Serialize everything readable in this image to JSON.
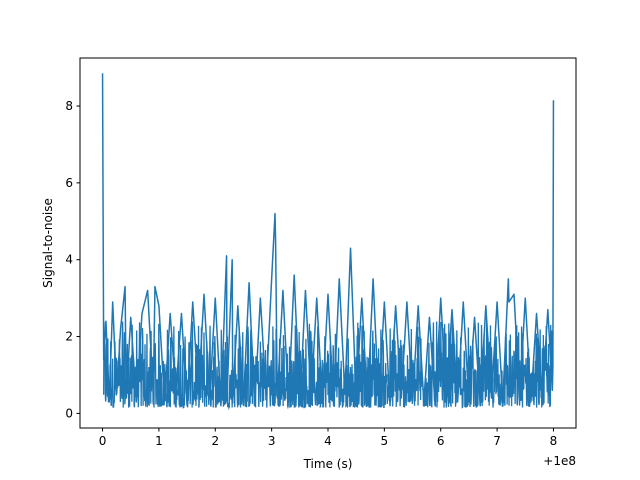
{
  "chart_data": {
    "type": "line",
    "xlabel": "Time (s)",
    "ylabel": "Signal-to-noise",
    "x_offset_label": "+1e8",
    "xlim": [
      -0.4,
      8.4
    ],
    "ylim": [
      -0.38,
      9.25
    ],
    "x_ticks": [
      0,
      1,
      2,
      3,
      4,
      5,
      6,
      7,
      8
    ],
    "x_tick_labels": [
      "0",
      "1",
      "2",
      "3",
      "4",
      "5",
      "6",
      "7",
      "8"
    ],
    "y_ticks": [
      0,
      2,
      4,
      6,
      8
    ],
    "y_tick_labels": [
      "0",
      "2",
      "4",
      "6",
      "8"
    ],
    "grid": false,
    "series": [
      {
        "color": "#1f77b4",
        "x": [
          0.0,
          0.02,
          0.06,
          0.12,
          0.18,
          0.25,
          0.32,
          0.4,
          0.42,
          0.5,
          0.6,
          0.7,
          0.8,
          0.9,
          0.93,
          1.0,
          1.1,
          1.2,
          1.3,
          1.4,
          1.5,
          1.6,
          1.7,
          1.8,
          1.9,
          2.0,
          2.1,
          2.2,
          2.21,
          2.3,
          2.31,
          2.4,
          2.5,
          2.6,
          2.7,
          2.8,
          2.9,
          3.0,
          3.06,
          3.07,
          3.1,
          3.2,
          3.3,
          3.4,
          3.5,
          3.6,
          3.7,
          3.8,
          3.9,
          4.0,
          4.1,
          4.2,
          4.3,
          4.4,
          4.41,
          4.5,
          4.6,
          4.7,
          4.8,
          4.81,
          4.9,
          5.0,
          5.1,
          5.2,
          5.3,
          5.4,
          5.5,
          5.6,
          5.7,
          5.8,
          5.9,
          6.0,
          6.1,
          6.2,
          6.3,
          6.4,
          6.5,
          6.6,
          6.7,
          6.8,
          6.9,
          7.0,
          7.1,
          7.2,
          7.21,
          7.3,
          7.4,
          7.5,
          7.6,
          7.7,
          7.8,
          7.9,
          7.98,
          7.99,
          8.0
        ],
        "y": [
          8.85,
          1.4,
          2.4,
          0.3,
          2.9,
          0.5,
          2.2,
          3.3,
          0.4,
          2.5,
          0.3,
          2.6,
          3.2,
          0.5,
          3.3,
          2.8,
          0.3,
          2.6,
          0.5,
          2.6,
          0.2,
          2.9,
          0.5,
          3.1,
          0.4,
          3.0,
          0.2,
          4.1,
          0.5,
          4.0,
          0.4,
          2.8,
          0.3,
          3.4,
          0.2,
          3.0,
          0.5,
          3.5,
          5.2,
          4.5,
          0.4,
          3.2,
          0.3,
          3.6,
          0.2,
          3.2,
          0.4,
          3.0,
          0.3,
          3.1,
          0.2,
          3.5,
          0.5,
          4.3,
          3.9,
          0.3,
          3.0,
          0.2,
          3.5,
          3.2,
          0.3,
          2.9,
          0.2,
          2.8,
          0.4,
          2.9,
          0.3,
          2.8,
          0.3,
          2.5,
          0.2,
          3.0,
          0.4,
          2.7,
          0.3,
          2.9,
          0.3,
          2.5,
          0.2,
          2.8,
          0.4,
          2.9,
          0.3,
          3.5,
          2.9,
          3.1,
          0.4,
          3.0,
          0.3,
          2.6,
          0.3,
          2.7,
          0.6,
          1.2,
          8.15
        ]
      }
    ]
  }
}
